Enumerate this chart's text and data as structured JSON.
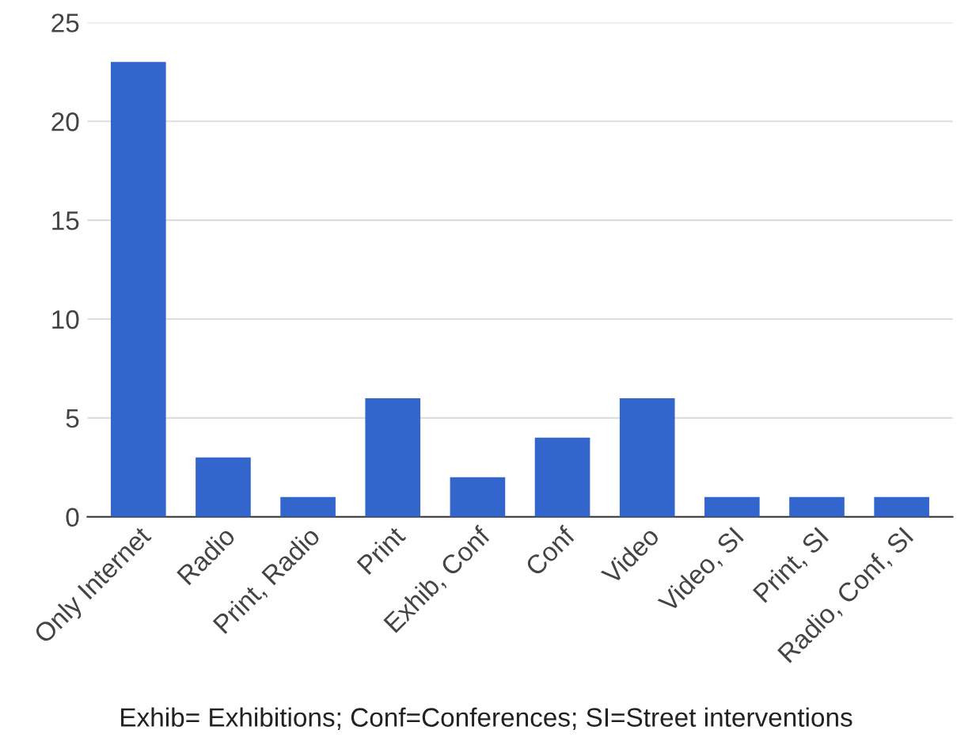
{
  "chart_data": {
    "type": "bar",
    "categories": [
      "Only Internet",
      "Radio",
      "Print, Radio",
      "Print",
      "Exhib, Conf",
      "Conf",
      "Video",
      "Video, SI",
      "Print, SI",
      "Radio, Conf, SI"
    ],
    "values": [
      23,
      3,
      1,
      6,
      2,
      4,
      6,
      1,
      1,
      1
    ],
    "color": "#3366cc",
    "ylim": [
      0,
      25
    ],
    "yticks": [
      0,
      5,
      10,
      15,
      20,
      25
    ],
    "grid": "y",
    "legend": false,
    "annotations": [
      "Exhib= Exhibitions; Conf=Conferences; SI=Street interventions"
    ]
  }
}
